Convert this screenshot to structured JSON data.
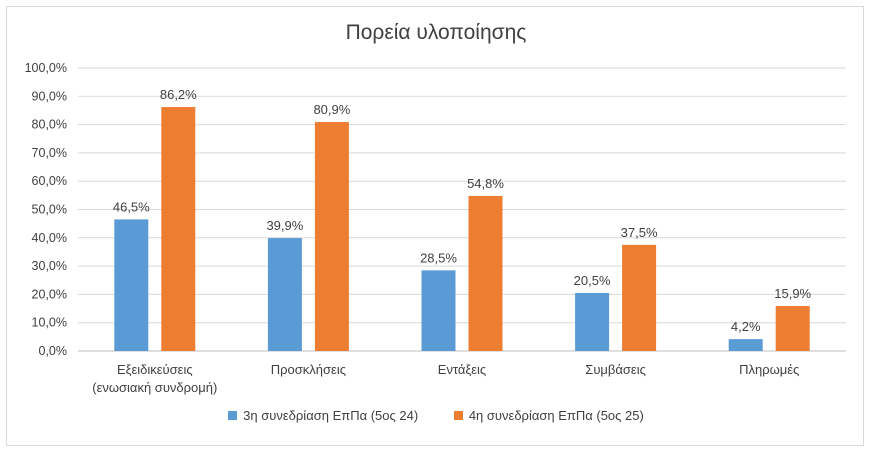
{
  "chart_data": {
    "type": "bar",
    "title": "Πορεία υλοποίησης",
    "categories": [
      [
        "Εξειδικεύσεις",
        "(ενωσιακή συνδρομή)"
      ],
      [
        "Προσκλήσεις"
      ],
      [
        "Εντάξεις"
      ],
      [
        "Συμβάσεις"
      ],
      [
        "Πληρωμές"
      ]
    ],
    "series": [
      {
        "name": "3η συνεδρίαση ΕπΠα (5ος 24)",
        "color": "#5b9bd5",
        "values": [
          46.5,
          39.9,
          28.5,
          20.5,
          4.2
        ],
        "labels": [
          "46,5%",
          "39,9%",
          "28,5%",
          "20,5%",
          "4,2%"
        ]
      },
      {
        "name": "4η συνεδρίαση ΕπΠα (5ος 25)",
        "color": "#ed7d31",
        "values": [
          86.2,
          80.9,
          54.8,
          37.5,
          15.9
        ],
        "labels": [
          "86,2%",
          "80,9%",
          "54,8%",
          "37,5%",
          "15,9%"
        ]
      }
    ],
    "ylim": [
      0,
      100
    ],
    "yticks": [
      "0,0%",
      "10,0%",
      "20,0%",
      "30,0%",
      "40,0%",
      "50,0%",
      "60,0%",
      "70,0%",
      "80,0%",
      "90,0%",
      "100,0%"
    ],
    "grid": true,
    "legend": "bottom"
  }
}
